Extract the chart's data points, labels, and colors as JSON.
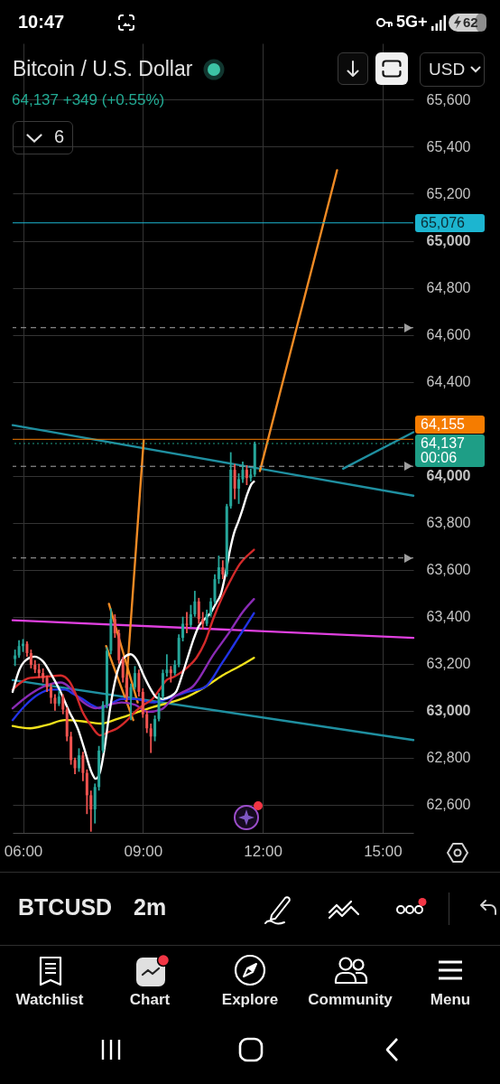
{
  "chart_data": {
    "type": "candlestick",
    "title": "Bitcoin / U.S. Dollar",
    "subtitle": "64,137 +349 (+0.55%)",
    "annotations": [
      "10:47",
      "5G+",
      "62",
      "USD",
      "6",
      "00:06",
      "BTCUSD",
      "2m",
      "Watchlist",
      "Chart",
      "Explore",
      "Community",
      "Menu"
    ],
    "x": [
      5.8,
      5.9,
      6.0,
      6.1,
      6.2,
      6.3,
      6.4,
      6.5,
      6.6,
      6.7,
      6.8,
      6.9,
      7.0,
      7.1,
      7.2,
      7.3,
      7.4,
      7.5,
      7.6,
      7.7,
      7.8,
      7.9,
      8.0,
      8.1,
      8.2,
      8.3,
      8.4,
      8.5,
      8.6,
      8.7,
      8.8,
      8.9,
      9.0,
      9.1,
      9.2,
      9.3,
      9.4,
      9.5,
      9.6,
      9.7,
      9.8,
      9.9,
      10.0,
      10.1,
      10.2,
      10.3,
      10.4,
      10.5,
      10.6,
      10.7,
      10.8,
      10.9,
      11.0,
      11.1,
      11.2,
      11.3,
      11.4,
      11.5,
      11.6,
      11.7,
      11.8
    ],
    "ohlc": [
      [
        63220,
        63260,
        63190,
        63235
      ],
      [
        63235,
        63300,
        63225,
        63275
      ],
      [
        63275,
        63305,
        63250,
        63285
      ],
      [
        63285,
        63295,
        63230,
        63245
      ],
      [
        63245,
        63260,
        63180,
        63195
      ],
      [
        63195,
        63215,
        63160,
        63175
      ],
      [
        63175,
        63200,
        63140,
        63160
      ],
      [
        63160,
        63180,
        63120,
        63140
      ],
      [
        63140,
        63150,
        63080,
        63100
      ],
      [
        63100,
        63115,
        63030,
        63055
      ],
      [
        63055,
        63070,
        63000,
        63030
      ],
      [
        63030,
        63085,
        63020,
        63060
      ],
      [
        63060,
        63070,
        62985,
        63005
      ],
      [
        63005,
        63015,
        62870,
        62890
      ],
      [
        62890,
        62910,
        62770,
        62790
      ],
      [
        62790,
        62800,
        62730,
        62755
      ],
      [
        62755,
        62840,
        62740,
        62810
      ],
      [
        62810,
        62825,
        62700,
        62735
      ],
      [
        62735,
        62750,
        62560,
        62640
      ],
      [
        62640,
        62660,
        62485,
        62580
      ],
      [
        62580,
        62690,
        62520,
        62675
      ],
      [
        62675,
        62850,
        62660,
        62830
      ],
      [
        62830,
        63040,
        62820,
        63025
      ],
      [
        63025,
        63270,
        63010,
        63255
      ],
      [
        63255,
        63435,
        63240,
        63390
      ],
      [
        63390,
        63410,
        63310,
        63330
      ],
      [
        63330,
        63345,
        63200,
        63215
      ],
      [
        63215,
        63230,
        63120,
        63140
      ],
      [
        63140,
        63155,
        63040,
        63060
      ],
      [
        63060,
        63115,
        62960,
        63100
      ],
      [
        63100,
        63190,
        63090,
        63160
      ],
      [
        63160,
        63175,
        63060,
        63080
      ],
      [
        63080,
        63095,
        62970,
        62985
      ],
      [
        62985,
        63000,
        62905,
        62925
      ],
      [
        62925,
        62945,
        62820,
        62890
      ],
      [
        62890,
        62980,
        62870,
        62965
      ],
      [
        62965,
        63075,
        62955,
        63060
      ],
      [
        63060,
        63175,
        63050,
        63160
      ],
      [
        63160,
        63240,
        63145,
        63175
      ],
      [
        63175,
        63190,
        63120,
        63160
      ],
      [
        63160,
        63215,
        63150,
        63195
      ],
      [
        63195,
        63325,
        63185,
        63310
      ],
      [
        63310,
        63400,
        63295,
        63370
      ],
      [
        63370,
        63420,
        63330,
        63365
      ],
      [
        63365,
        63450,
        63355,
        63410
      ],
      [
        63410,
        63510,
        63400,
        63465
      ],
      [
        63465,
        63480,
        63370,
        63390
      ],
      [
        63390,
        63420,
        63345,
        63370
      ],
      [
        63370,
        63430,
        63360,
        63410
      ],
      [
        63410,
        63480,
        63400,
        63465
      ],
      [
        63465,
        63580,
        63455,
        63560
      ],
      [
        63560,
        63660,
        63540,
        63610
      ],
      [
        63610,
        63640,
        63560,
        63580
      ],
      [
        63580,
        63880,
        63570,
        63870
      ],
      [
        63870,
        64100,
        63860,
        64025
      ],
      [
        64025,
        64050,
        63900,
        63945
      ],
      [
        63945,
        64010,
        63880,
        63985
      ],
      [
        63985,
        64060,
        63970,
        64025
      ],
      [
        64025,
        64045,
        63960,
        63990
      ],
      [
        63990,
        64030,
        63975,
        64005
      ],
      [
        64005,
        64145,
        63995,
        64137
      ]
    ],
    "colors": [
      "#26a69a",
      "#26a69a",
      "#26a69a",
      "#ef5350",
      "#ef5350",
      "#ef5350",
      "#ef5350",
      "#ef5350",
      "#ef5350",
      "#ef5350",
      "#ef5350",
      "#26a69a",
      "#ef5350",
      "#ef5350",
      "#ef5350",
      "#ef5350",
      "#26a69a",
      "#ef5350",
      "#ef5350",
      "#ef5350",
      "#26a69a",
      "#26a69a",
      "#26a69a",
      "#26a69a",
      "#26a69a",
      "#ef5350",
      "#ef5350",
      "#ef5350",
      "#ef5350",
      "#26a69a",
      "#26a69a",
      "#ef5350",
      "#ef5350",
      "#ef5350",
      "#ef5350",
      "#26a69a",
      "#26a69a",
      "#26a69a",
      "#26a69a",
      "#ef5350",
      "#26a69a",
      "#26a69a",
      "#26a69a",
      "#ef5350",
      "#26a69a",
      "#26a69a",
      "#ef5350",
      "#ef5350",
      "#26a69a",
      "#26a69a",
      "#26a69a",
      "#26a69a",
      "#ef5350",
      "#26a69a",
      "#26a69a",
      "#ef5350",
      "#26a69a",
      "#26a69a",
      "#ef5350",
      "#26a69a",
      "#26a69a"
    ],
    "series": [
      {
        "type": "line",
        "color": "#1f8fa0",
        "x": [
          5.74,
          15.77
        ],
        "values": [
          64215,
          63915
        ]
      },
      {
        "type": "line",
        "color": "#1f8fa0",
        "x": [
          5.74,
          15.77
        ],
        "values": [
          63130,
          62875
        ]
      },
      {
        "type": "line",
        "color": "#1f8fa0",
        "x": [
          14.01,
          15.77
        ],
        "values": [
          64030,
          64185
        ]
      },
      {
        "type": "line",
        "color": "#e040e0",
        "x": [
          5.74,
          15.77
        ],
        "values": [
          63385,
          63310
        ]
      },
      {
        "type": "line",
        "color": "#f08a24",
        "x": [
          11.93,
          13.86
        ],
        "values": [
          64020,
          65300
        ]
      },
      {
        "type": "line",
        "color": "#f08a24",
        "x": [
          8.58,
          9.02
        ],
        "values": [
          63100,
          64150
        ]
      },
      {
        "type": "line",
        "color": "#f08a24",
        "x": [
          8.15,
          8.87
        ],
        "values": [
          63455,
          63035
        ]
      },
      {
        "type": "line",
        "color": "#f08a24",
        "x": [
          8.08,
          8.76
        ],
        "values": [
          63275,
          62960
        ]
      },
      {
        "type": "line",
        "color": "#f2e21c",
        "x": [
          5.74,
          6.18,
          6.61,
          7.05,
          7.49,
          7.93,
          8.36,
          8.8,
          9.24,
          9.68,
          10.12,
          10.55,
          10.99,
          11.43,
          11.78
        ],
        "values": [
          62935,
          62925,
          62940,
          62960,
          62955,
          62945,
          62965,
          62990,
          63015,
          63035,
          63060,
          63100,
          63150,
          63190,
          63225
        ]
      },
      {
        "type": "line",
        "color": "#2233e6",
        "x": [
          5.74,
          6.07,
          6.39,
          6.72,
          7.05,
          7.27,
          7.49,
          7.71,
          7.93,
          8.15,
          8.47,
          8.8,
          9.24,
          9.68,
          10.12,
          10.55,
          10.99,
          11.37,
          11.78
        ],
        "values": [
          62960,
          63025,
          63070,
          63090,
          63090,
          63070,
          63050,
          63025,
          63010,
          63025,
          63050,
          63050,
          63035,
          63055,
          63080,
          63100,
          63205,
          63305,
          63415
        ]
      },
      {
        "type": "line",
        "color": "#8a2bb5",
        "x": [
          5.74,
          6.18,
          6.61,
          6.94,
          7.16,
          7.38,
          7.6,
          7.82,
          8.15,
          8.47,
          8.8,
          9.13,
          9.46,
          9.79,
          10.01,
          10.23,
          10.77,
          11.15,
          11.5,
          11.78
        ],
        "values": [
          63010,
          63070,
          63110,
          63120,
          63100,
          63055,
          63025,
          63010,
          63025,
          63035,
          63025,
          62995,
          63005,
          63060,
          63080,
          63100,
          63240,
          63330,
          63420,
          63475
        ]
      },
      {
        "type": "line",
        "color": "#d42a2a",
        "x": [
          5.74,
          6.18,
          6.61,
          6.94,
          7.16,
          7.31,
          7.49,
          7.71,
          7.93,
          8.15,
          8.36,
          8.58,
          8.8,
          9.02,
          9.24,
          9.42,
          9.59,
          9.79,
          10.12,
          10.34,
          10.55,
          10.77,
          10.99,
          11.21,
          11.43,
          11.65,
          11.78
        ],
        "values": [
          63090,
          63140,
          63145,
          63150,
          63125,
          63075,
          62995,
          62935,
          62895,
          62910,
          62925,
          62955,
          62995,
          63025,
          63050,
          63090,
          63130,
          63145,
          63185,
          63225,
          63290,
          63395,
          63485,
          63560,
          63625,
          63665,
          63685
        ]
      },
      {
        "type": "line",
        "color": "#ffffff",
        "x": [
          5.74,
          5.91,
          6.07,
          6.28,
          6.5,
          6.72,
          6.94,
          7.16,
          7.38,
          7.53,
          7.71,
          7.82,
          7.93,
          8.04,
          8.15,
          8.26,
          8.36,
          8.52,
          8.69,
          8.85,
          9.02,
          9.2,
          9.35,
          9.5,
          9.68,
          9.83,
          9.96,
          10.12,
          10.27,
          10.4,
          10.55,
          10.71,
          10.84,
          10.95,
          11.06,
          11.17,
          11.28,
          11.39,
          11.5,
          11.61,
          11.72,
          11.78
        ],
        "values": [
          63080,
          63175,
          63215,
          63230,
          63210,
          63150,
          63080,
          62995,
          62920,
          62840,
          62740,
          62710,
          62740,
          62840,
          62975,
          63090,
          63165,
          63225,
          63240,
          63215,
          63150,
          63090,
          63055,
          63050,
          63060,
          63080,
          63140,
          63225,
          63305,
          63360,
          63390,
          63420,
          63460,
          63495,
          63575,
          63675,
          63755,
          63805,
          63860,
          63920,
          63965,
          63975
        ]
      }
    ],
    "ref_lines": [
      {
        "axis": "y",
        "value": 65076,
        "label": "65,076",
        "color": "#1cb5d0",
        "line_style": "solid"
      },
      {
        "axis": "y",
        "value": 64630,
        "color": "#a8a8a8",
        "line_style": "dashed"
      },
      {
        "axis": "y",
        "value": 64155,
        "label": "64,155",
        "color": "#f57c00",
        "line_style": "solid"
      },
      {
        "axis": "y",
        "value": 64137,
        "label": "64,137",
        "color": "#1e9e86",
        "line_style": "dotted"
      },
      {
        "axis": "y",
        "value": 64040,
        "color": "#a8a8a8",
        "line_style": "dashed"
      },
      {
        "axis": "y",
        "value": 63650,
        "color": "#a8a8a8",
        "line_style": "dashed"
      }
    ],
    "xlim": [
      5.74,
      15.77
    ],
    "ylim": [
      62480,
      65840
    ],
    "xticks": [
      {
        "value": 6,
        "label": "06:00"
      },
      {
        "value": 9,
        "label": "09:00"
      },
      {
        "value": 12,
        "label": "12:00"
      },
      {
        "value": 15,
        "label": "15:00"
      }
    ],
    "yticks": [
      {
        "value": 62600,
        "label": "62,600"
      },
      {
        "value": 62800,
        "label": "62,800"
      },
      {
        "value": 63000,
        "label": "63,000"
      },
      {
        "value": 63200,
        "label": "63,200"
      },
      {
        "value": 63400,
        "label": "63,400"
      },
      {
        "value": 63600,
        "label": "63,600"
      },
      {
        "value": 63800,
        "label": "63,800"
      },
      {
        "value": 64000,
        "label": "64,000"
      },
      {
        "value": 64200,
        "label": null
      },
      {
        "value": 64400,
        "label": "64,400"
      },
      {
        "value": 64600,
        "label": "64,600"
      },
      {
        "value": 64800,
        "label": "64,800"
      },
      {
        "value": 65000,
        "label": "65,000"
      },
      {
        "value": 65200,
        "label": "65,200"
      },
      {
        "value": 65400,
        "label": "65,400"
      },
      {
        "value": 65600,
        "label": "65,600"
      }
    ],
    "grid": true
  }
}
